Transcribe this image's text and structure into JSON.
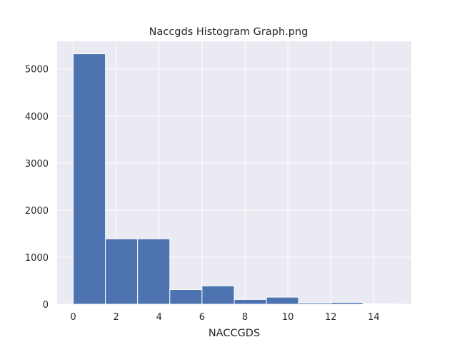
{
  "chart_data": {
    "type": "bar",
    "title": "Naccgds Histogram Graph.png",
    "xlabel": "NACCGDS",
    "ylabel": "",
    "bins": [
      {
        "start": 0.0,
        "end": 1.5,
        "count": 5320
      },
      {
        "start": 1.5,
        "end": 3.0,
        "count": 1390
      },
      {
        "start": 3.0,
        "end": 4.5,
        "count": 1390
      },
      {
        "start": 4.5,
        "end": 6.0,
        "count": 310
      },
      {
        "start": 6.0,
        "end": 7.5,
        "count": 390
      },
      {
        "start": 7.5,
        "end": 9.0,
        "count": 100
      },
      {
        "start": 9.0,
        "end": 10.5,
        "count": 150
      },
      {
        "start": 10.5,
        "end": 12.0,
        "count": 30
      },
      {
        "start": 12.0,
        "end": 13.5,
        "count": 40
      },
      {
        "start": 13.5,
        "end": 15.0,
        "count": 10
      }
    ],
    "xlim": [
      -0.75,
      15.75
    ],
    "ylim": [
      0,
      5586
    ],
    "xticks": [
      0,
      2,
      4,
      6,
      8,
      10,
      12,
      14
    ],
    "yticks": [
      0,
      1000,
      2000,
      3000,
      4000,
      5000
    ],
    "grid": true,
    "colors": {
      "bar": "#4c72b0",
      "bar_edge": "#ffffff",
      "plot_background": "#eaeaf2",
      "grid": "#ffffff",
      "text": "#262626"
    }
  }
}
